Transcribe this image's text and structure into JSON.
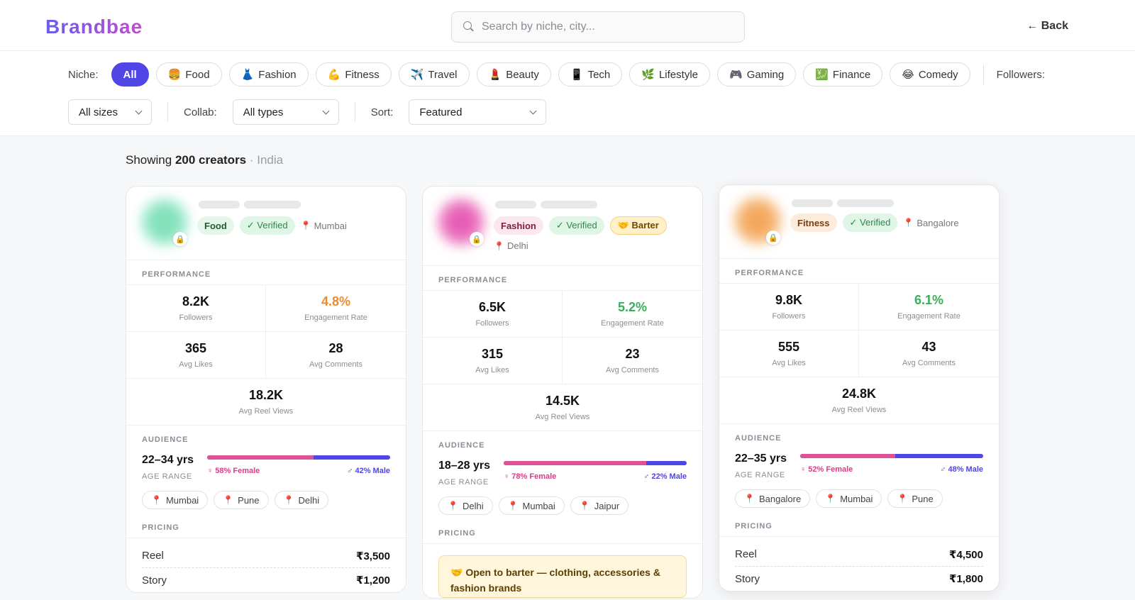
{
  "header": {
    "logo": "Brandbae",
    "search_placeholder": "Search by niche, city...",
    "back_label": "← Back"
  },
  "filters": {
    "niche_label": "Niche:",
    "niches": [
      {
        "icon": "",
        "label": "All"
      },
      {
        "icon": "🍔",
        "label": "Food"
      },
      {
        "icon": "👗",
        "label": "Fashion"
      },
      {
        "icon": "💪",
        "label": "Fitness"
      },
      {
        "icon": "✈️",
        "label": "Travel"
      },
      {
        "icon": "💄",
        "label": "Beauty"
      },
      {
        "icon": "📱",
        "label": "Tech"
      },
      {
        "icon": "🌿",
        "label": "Lifestyle"
      },
      {
        "icon": "🎮",
        "label": "Gaming"
      },
      {
        "icon": "💹",
        "label": "Finance"
      },
      {
        "icon": "😂",
        "label": "Comedy"
      }
    ],
    "followers_label": "Followers:",
    "size_value": "All sizes",
    "collab_label": "Collab:",
    "collab_value": "All types",
    "sort_label": "Sort:",
    "sort_value": "Featured"
  },
  "summary": {
    "prefix": "Showing",
    "count": "200 creators",
    "location": "· India"
  },
  "labels": {
    "performance": "PERFORMANCE",
    "followers": "Followers",
    "engagement": "Engagement Rate",
    "avg_likes": "Avg Likes",
    "avg_comments": "Avg Comments",
    "avg_reel_views": "Avg Reel Views",
    "audience": "AUDIENCE",
    "age_range": "AGE RANGE",
    "pricing": "PRICING",
    "verified": "✓ Verified",
    "reel": "Reel",
    "story": "Story"
  },
  "cards": [
    {
      "niche": "Food",
      "city": "Mumbai",
      "followers": "8.2K",
      "engagement": "4.8%",
      "avg_likes": "365",
      "avg_comments": "28",
      "avg_reel_views": "18.2K",
      "age": "22–34 yrs",
      "female": "♀ 58% Female",
      "male": "♂ 42% Male",
      "female_pct": 58,
      "cities": [
        "Mumbai",
        "Pune",
        "Delhi"
      ],
      "reel_price": "₹3,500",
      "story_price": "₹1,200"
    },
    {
      "niche": "Fashion",
      "city": "Delhi",
      "barter": "🤝 Barter",
      "followers": "6.5K",
      "engagement": "5.2%",
      "avg_likes": "315",
      "avg_comments": "23",
      "avg_reel_views": "14.5K",
      "age": "18–28 yrs",
      "female": "♀ 78% Female",
      "male": "♂ 22% Male",
      "female_pct": 78,
      "cities": [
        "Delhi",
        "Mumbai",
        "Jaipur"
      ],
      "barter_note": "🤝 Open to barter — clothing, accessories & fashion brands"
    },
    {
      "niche": "Fitness",
      "city": "Bangalore",
      "followers": "9.8K",
      "engagement": "6.1%",
      "avg_likes": "555",
      "avg_comments": "43",
      "avg_reel_views": "24.8K",
      "age": "22–35 yrs",
      "female": "♀ 52% Female",
      "male": "♂ 48% Male",
      "female_pct": 52,
      "cities": [
        "Bangalore",
        "Mumbai",
        "Pune"
      ],
      "reel_price": "₹4,500",
      "story_price": "₹1,800"
    }
  ],
  "colors": {
    "accent": "#4f46e5",
    "female": "#e05296",
    "engagement_orange": "#ef8a2c",
    "engagement_green": "#3aae5a"
  }
}
